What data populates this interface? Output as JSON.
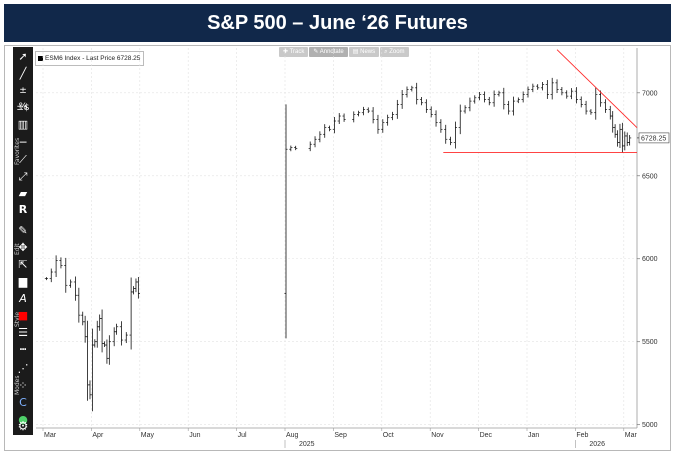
{
  "title": "S&P 500 – June ‘26 Futures",
  "legend": {
    "label": "ESM6 Index - Last Price 6728.25"
  },
  "chart_tools": [
    {
      "icon": "plus-icon",
      "glyph": "✚",
      "label": "Track"
    },
    {
      "icon": "pencil-icon",
      "glyph": "✎",
      "label": "Annotate"
    },
    {
      "icon": "news-icon",
      "glyph": "▤",
      "label": "News"
    },
    {
      "icon": "zoom-icon",
      "glyph": "⌕",
      "label": "Zoom"
    }
  ],
  "toolbar": {
    "groups": [
      "Favorites",
      "Edit",
      "Style",
      "Modes"
    ]
  },
  "colors": {
    "title_bg": "#11284a",
    "bars": "#111111",
    "trendline": "#ff2a2a",
    "price_label_bg": "#ffffff"
  },
  "chart_data": {
    "type": "ohlc",
    "title": "S&P 500 – June ‘26 Futures",
    "series_name": "ESM6 Index",
    "last_price": 6728.25,
    "last_price_label": "6728.25",
    "ylim": [
      4980,
      7270
    ],
    "y_ticks": [
      5000,
      5500,
      6000,
      6500,
      7000
    ],
    "y_tick_labels": [
      "5000",
      "5500",
      "6000",
      "6500",
      "7000"
    ],
    "x_months": [
      "Mar",
      "Apr",
      "May",
      "Jun",
      "Jul",
      "Aug",
      "Sep",
      "Oct",
      "Nov",
      "Dec",
      "Jan",
      "Feb",
      "Mar"
    ],
    "x_years": [
      {
        "label": "2025",
        "month_index": 5
      },
      {
        "label": "2026",
        "month_index": 11
      }
    ],
    "x_range_months": [
      0,
      12.2
    ],
    "points": [
      {
        "t": 0.05,
        "c": 5880
      },
      {
        "t": 0.15,
        "c": 5920
      },
      {
        "t": 0.25,
        "c": 5990
      },
      {
        "t": 0.35,
        "c": 5960
      },
      {
        "t": 0.45,
        "c": 5840
      },
      {
        "t": 0.55,
        "c": 5860
      },
      {
        "t": 0.65,
        "c": 5780
      },
      {
        "t": 0.72,
        "c": 5660
      },
      {
        "t": 0.8,
        "c": 5620
      },
      {
        "t": 0.85,
        "c": 5530
      },
      {
        "t": 0.9,
        "c": 5240
      },
      {
        "t": 0.95,
        "c": 5180
      },
      {
        "t": 1.0,
        "c": 5480
      },
      {
        "t": 1.05,
        "c": 5500
      },
      {
        "t": 1.1,
        "c": 5590
      },
      {
        "t": 1.15,
        "c": 5640
      },
      {
        "t": 1.2,
        "c": 5490
      },
      {
        "t": 1.25,
        "c": 5480
      },
      {
        "t": 1.3,
        "c": 5400
      },
      {
        "t": 1.35,
        "c": 5500
      },
      {
        "t": 1.45,
        "c": 5560
      },
      {
        "t": 1.5,
        "c": 5590
      },
      {
        "t": 1.6,
        "c": 5510
      },
      {
        "t": 1.7,
        "c": 5540
      },
      {
        "t": 1.8,
        "c": 5800
      },
      {
        "t": 1.85,
        "c": 5820
      },
      {
        "t": 1.9,
        "c": 5860
      },
      {
        "t": 1.95,
        "c": 5790
      },
      {
        "t": 5.0,
        "c": 6660
      },
      {
        "t": 5.1,
        "c": 6670
      },
      {
        "t": 5.2,
        "c": 6665
      },
      {
        "t": 5.5,
        "c": 6690
      },
      {
        "t": 5.6,
        "c": 6720
      },
      {
        "t": 5.7,
        "c": 6750
      },
      {
        "t": 5.8,
        "c": 6790
      },
      {
        "t": 5.9,
        "c": 6780
      },
      {
        "t": 6.0,
        "c": 6830
      },
      {
        "t": 6.1,
        "c": 6860
      },
      {
        "t": 6.2,
        "c": 6840
      },
      {
        "t": 6.4,
        "c": 6870
      },
      {
        "t": 6.5,
        "c": 6880
      },
      {
        "t": 6.6,
        "c": 6900
      },
      {
        "t": 6.7,
        "c": 6890
      },
      {
        "t": 6.8,
        "c": 6840
      },
      {
        "t": 6.9,
        "c": 6780
      },
      {
        "t": 7.0,
        "c": 6820
      },
      {
        "t": 7.1,
        "c": 6850
      },
      {
        "t": 7.2,
        "c": 6870
      },
      {
        "t": 7.3,
        "c": 6930
      },
      {
        "t": 7.4,
        "c": 6990
      },
      {
        "t": 7.5,
        "c": 7020
      },
      {
        "t": 7.6,
        "c": 7030
      },
      {
        "t": 7.7,
        "c": 6960
      },
      {
        "t": 7.8,
        "c": 6940
      },
      {
        "t": 7.9,
        "c": 6900
      },
      {
        "t": 8.0,
        "c": 6870
      },
      {
        "t": 8.1,
        "c": 6820
      },
      {
        "t": 8.2,
        "c": 6780
      },
      {
        "t": 8.3,
        "c": 6720
      },
      {
        "t": 8.4,
        "c": 6700
      },
      {
        "t": 8.5,
        "c": 6790
      },
      {
        "t": 8.6,
        "c": 6890
      },
      {
        "t": 8.7,
        "c": 6910
      },
      {
        "t": 8.8,
        "c": 6950
      },
      {
        "t": 8.9,
        "c": 6970
      },
      {
        "t": 9.0,
        "c": 6990
      },
      {
        "t": 9.1,
        "c": 6960
      },
      {
        "t": 9.2,
        "c": 6940
      },
      {
        "t": 9.3,
        "c": 6990
      },
      {
        "t": 9.4,
        "c": 7000
      },
      {
        "t": 9.5,
        "c": 6930
      },
      {
        "t": 9.6,
        "c": 6890
      },
      {
        "t": 9.7,
        "c": 6950
      },
      {
        "t": 9.8,
        "c": 6960
      },
      {
        "t": 9.9,
        "c": 6990
      },
      {
        "t": 10.0,
        "c": 7020
      },
      {
        "t": 10.1,
        "c": 7040
      },
      {
        "t": 10.2,
        "c": 7030
      },
      {
        "t": 10.3,
        "c": 7050
      },
      {
        "t": 10.4,
        "c": 6990
      },
      {
        "t": 10.5,
        "c": 7060
      },
      {
        "t": 10.6,
        "c": 7020
      },
      {
        "t": 10.7,
        "c": 7000
      },
      {
        "t": 10.8,
        "c": 6980
      },
      {
        "t": 10.9,
        "c": 7010
      },
      {
        "t": 11.0,
        "c": 6960
      },
      {
        "t": 11.1,
        "c": 6930
      },
      {
        "t": 11.2,
        "c": 6890
      },
      {
        "t": 11.3,
        "c": 6880
      },
      {
        "t": 11.4,
        "c": 6990
      },
      {
        "t": 11.5,
        "c": 6940
      },
      {
        "t": 11.6,
        "c": 6900
      },
      {
        "t": 11.7,
        "c": 6860
      },
      {
        "t": 11.75,
        "c": 6790
      },
      {
        "t": 11.8,
        "c": 6750
      },
      {
        "t": 11.85,
        "c": 6700
      },
      {
        "t": 11.9,
        "c": 6780
      },
      {
        "t": 11.95,
        "c": 6680
      },
      {
        "t": 12.0,
        "c": 6740
      },
      {
        "t": 12.05,
        "c": 6700
      },
      {
        "t": 12.1,
        "c": 6728
      }
    ],
    "annotations": [
      {
        "type": "trendline",
        "from": {
          "t": 10.6,
          "v": 7260
        },
        "to": {
          "t": 12.3,
          "v": 6790
        }
      },
      {
        "type": "support",
        "from": {
          "t": 8.25,
          "v": 6640
        },
        "to": {
          "t": 12.3,
          "v": 6640
        }
      }
    ]
  }
}
